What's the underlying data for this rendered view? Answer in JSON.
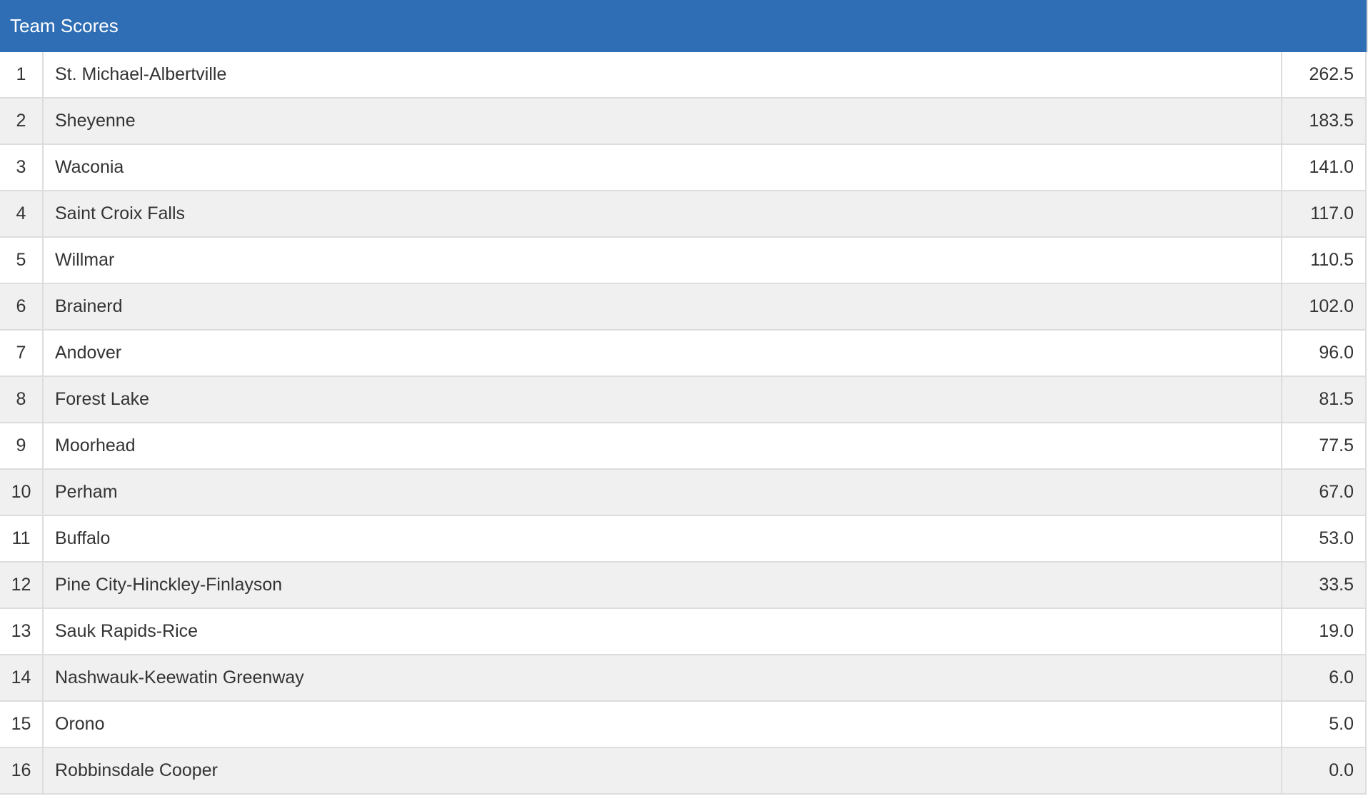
{
  "title": "Team Scores",
  "rows": [
    {
      "rank": "1",
      "team": "St. Michael-Albertville",
      "score": "262.5"
    },
    {
      "rank": "2",
      "team": "Sheyenne",
      "score": "183.5"
    },
    {
      "rank": "3",
      "team": "Waconia",
      "score": "141.0"
    },
    {
      "rank": "4",
      "team": "Saint Croix Falls",
      "score": "117.0"
    },
    {
      "rank": "5",
      "team": "Willmar",
      "score": "110.5"
    },
    {
      "rank": "6",
      "team": "Brainerd",
      "score": "102.0"
    },
    {
      "rank": "7",
      "team": "Andover",
      "score": "96.0"
    },
    {
      "rank": "8",
      "team": "Forest Lake",
      "score": "81.5"
    },
    {
      "rank": "9",
      "team": "Moorhead",
      "score": "77.5"
    },
    {
      "rank": "10",
      "team": "Perham",
      "score": "67.0"
    },
    {
      "rank": "11",
      "team": "Buffalo",
      "score": "53.0"
    },
    {
      "rank": "12",
      "team": "Pine City-Hinckley-Finlayson",
      "score": "33.5"
    },
    {
      "rank": "13",
      "team": "Sauk Rapids-Rice",
      "score": "19.0"
    },
    {
      "rank": "14",
      "team": "Nashwauk-Keewatin Greenway",
      "score": "6.0"
    },
    {
      "rank": "15",
      "team": "Orono",
      "score": "5.0"
    },
    {
      "rank": "16",
      "team": "Robbinsdale Cooper",
      "score": "0.0"
    }
  ],
  "colors": {
    "header_bg": "#2f6eb5",
    "stripe": "#f0f0f0",
    "border": "#dddddd"
  }
}
